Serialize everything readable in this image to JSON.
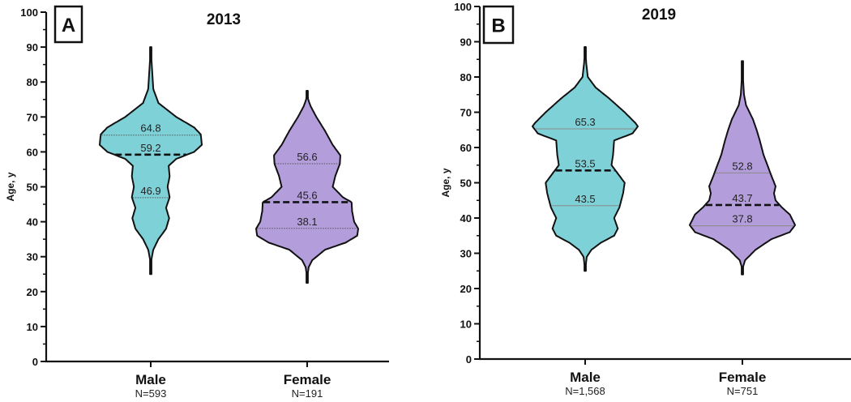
{
  "colors": {
    "male": "#7fd1d8",
    "female": "#b39ddb",
    "outline": "#111111",
    "quartile_line": "#666666"
  },
  "chart_data": [
    {
      "type": "violin",
      "panel_label": "A",
      "title": "2013",
      "ylabel": "Age, y",
      "ylim": [
        0,
        100
      ],
      "yticks": [
        0,
        10,
        20,
        30,
        40,
        50,
        60,
        70,
        80,
        90,
        100
      ],
      "quartile_style": "dotted",
      "categories": [
        {
          "name": "Male",
          "n_label": "N=593",
          "color_key": "male",
          "median": 59.2,
          "q1": 46.9,
          "q3": 64.8,
          "median_label": "59.2",
          "q1_label": "46.9",
          "q3_label": "64.8",
          "density": [
            [
              25,
              0
            ],
            [
              29,
              0.01
            ],
            [
              32,
              0.05
            ],
            [
              35,
              0.15
            ],
            [
              38,
              0.3
            ],
            [
              41,
              0.36
            ],
            [
              44,
              0.3
            ],
            [
              47,
              0.37
            ],
            [
              50,
              0.33
            ],
            [
              53,
              0.37
            ],
            [
              56,
              0.35
            ],
            [
              58,
              0.5
            ],
            [
              60,
              0.85
            ],
            [
              62,
              1.0
            ],
            [
              65,
              0.98
            ],
            [
              67,
              0.85
            ],
            [
              70,
              0.5
            ],
            [
              74,
              0.15
            ],
            [
              78,
              0.05
            ],
            [
              85,
              0.02
            ],
            [
              90,
              0
            ]
          ]
        },
        {
          "name": "Female",
          "n_label": "N=191",
          "color_key": "female",
          "median": 45.6,
          "q1": 38.1,
          "q3": 56.6,
          "median_label": "45.6",
          "q1_label": "38.1",
          "q3_label": "56.6",
          "density": [
            [
              22.5,
              0
            ],
            [
              25,
              0.01
            ],
            [
              27,
              0.03
            ],
            [
              29,
              0.1
            ],
            [
              32,
              0.35
            ],
            [
              34,
              0.75
            ],
            [
              36,
              0.98
            ],
            [
              38,
              1.0
            ],
            [
              40,
              0.92
            ],
            [
              43,
              0.88
            ],
            [
              45.6,
              0.87
            ],
            [
              47,
              0.7
            ],
            [
              50,
              0.5
            ],
            [
              53,
              0.55
            ],
            [
              56.6,
              0.64
            ],
            [
              59,
              0.65
            ],
            [
              62,
              0.5
            ],
            [
              66,
              0.35
            ],
            [
              70,
              0.18
            ],
            [
              73,
              0.07
            ],
            [
              75,
              0.02
            ],
            [
              77.5,
              0
            ]
          ]
        }
      ]
    },
    {
      "type": "violin",
      "panel_label": "B",
      "title": "2019",
      "ylabel": "Age, y",
      "ylim": [
        0,
        100
      ],
      "yticks": [
        0,
        10,
        20,
        30,
        40,
        50,
        60,
        70,
        80,
        90,
        100
      ],
      "quartile_style": "solid",
      "categories": [
        {
          "name": "Male",
          "n_label": "N=1,568",
          "color_key": "male",
          "median": 53.5,
          "q1": 43.5,
          "q3": 65.3,
          "median_label": "53.5",
          "q1_label": "43.5",
          "q3_label": "65.3",
          "density": [
            [
              25,
              0
            ],
            [
              29,
              0.03
            ],
            [
              31,
              0.12
            ],
            [
              33,
              0.3
            ],
            [
              35,
              0.55
            ],
            [
              37,
              0.62
            ],
            [
              40,
              0.55
            ],
            [
              43,
              0.65
            ],
            [
              47,
              0.72
            ],
            [
              50,
              0.75
            ],
            [
              52,
              0.65
            ],
            [
              55,
              0.5
            ],
            [
              58,
              0.53
            ],
            [
              62,
              0.55
            ],
            [
              64,
              0.9
            ],
            [
              66,
              1.0
            ],
            [
              67,
              0.95
            ],
            [
              70,
              0.75
            ],
            [
              74,
              0.45
            ],
            [
              77,
              0.2
            ],
            [
              80,
              0.05
            ],
            [
              84,
              0.02
            ],
            [
              88.5,
              0
            ]
          ]
        },
        {
          "name": "Female",
          "n_label": "N=751",
          "color_key": "female",
          "median": 43.7,
          "q1": 37.8,
          "q3": 52.8,
          "median_label": "43.7",
          "q1_label": "37.8",
          "q3_label": "52.8",
          "density": [
            [
              24,
              0
            ],
            [
              26,
              0.01
            ],
            [
              28,
              0.05
            ],
            [
              31,
              0.25
            ],
            [
              34,
              0.55
            ],
            [
              36,
              0.9
            ],
            [
              38,
              1.0
            ],
            [
              41,
              0.9
            ],
            [
              43,
              0.75
            ],
            [
              45,
              0.63
            ],
            [
              47,
              0.6
            ],
            [
              49,
              0.63
            ],
            [
              52,
              0.55
            ],
            [
              54,
              0.5
            ],
            [
              58,
              0.4
            ],
            [
              62,
              0.33
            ],
            [
              65,
              0.27
            ],
            [
              68,
              0.2
            ],
            [
              72,
              0.07
            ],
            [
              75,
              0.03
            ],
            [
              80,
              0.01
            ],
            [
              84.5,
              0
            ]
          ]
        }
      ]
    }
  ]
}
